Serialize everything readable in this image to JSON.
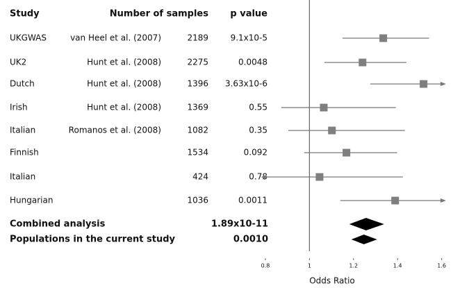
{
  "chart_data": {
    "type": "forest",
    "headers": {
      "study": "Study",
      "samples": "Number of samples",
      "p": "p value"
    },
    "rows": [
      {
        "study": "UKGWAS",
        "reference": "van Heel et al. (2007)",
        "samples": 2189,
        "p": "9.1x10-5",
        "or": 1.335,
        "lower": 1.15,
        "upper": 1.543
      },
      {
        "study": "UK2",
        "reference": "Hunt et al. (2008)",
        "samples": 2275,
        "p": "0.0048",
        "or": 1.241,
        "lower": 1.068,
        "upper": 1.44
      },
      {
        "study": "Dutch",
        "reference": "Hunt et al. (2008)",
        "samples": 1396,
        "p": "3.63x10-6",
        "or": 1.518,
        "lower": 1.276,
        "upper": null
      },
      {
        "study": "Irish",
        "reference": "Hunt et al. (2008)",
        "samples": 1369,
        "p": "0.55",
        "or": 1.065,
        "lower": 0.872,
        "upper": 1.392
      },
      {
        "study": "Italian",
        "reference": "Romanos et al. (2008)",
        "samples": 1082,
        "p": "0.35",
        "or": 1.102,
        "lower": 0.904,
        "upper": 1.433
      },
      {
        "study": "Finnish",
        "reference": null,
        "samples": 1534,
        "p": "0.092",
        "or": 1.168,
        "lower": 0.976,
        "upper": 1.398
      },
      {
        "study": "Italian",
        "reference": null,
        "samples": 424,
        "p": "0.78",
        "or": 1.046,
        "lower": null,
        "upper": 1.424
      },
      {
        "study": "Hungarian",
        "reference": null,
        "samples": 1036,
        "p": "0.0011",
        "or": 1.389,
        "lower": 1.14,
        "upper": null
      }
    ],
    "summaries": [
      {
        "label": "Combined analysis",
        "p": "1.89x10-11",
        "or": 1.257,
        "lower": 1.181,
        "upper": 1.339
      },
      {
        "label": "Populations in the current study",
        "p": "0.0010",
        "or": 1.247,
        "lower": 1.19,
        "upper": 1.307
      }
    ],
    "xlim": [
      0.78,
      1.62
    ],
    "xticks": [
      0.8,
      1,
      1.2,
      1.4,
      1.6
    ],
    "xlabel": "Odds Ratio",
    "ref_line": 1,
    "color": "#7f7f7f",
    "summary_color": "#000000"
  }
}
